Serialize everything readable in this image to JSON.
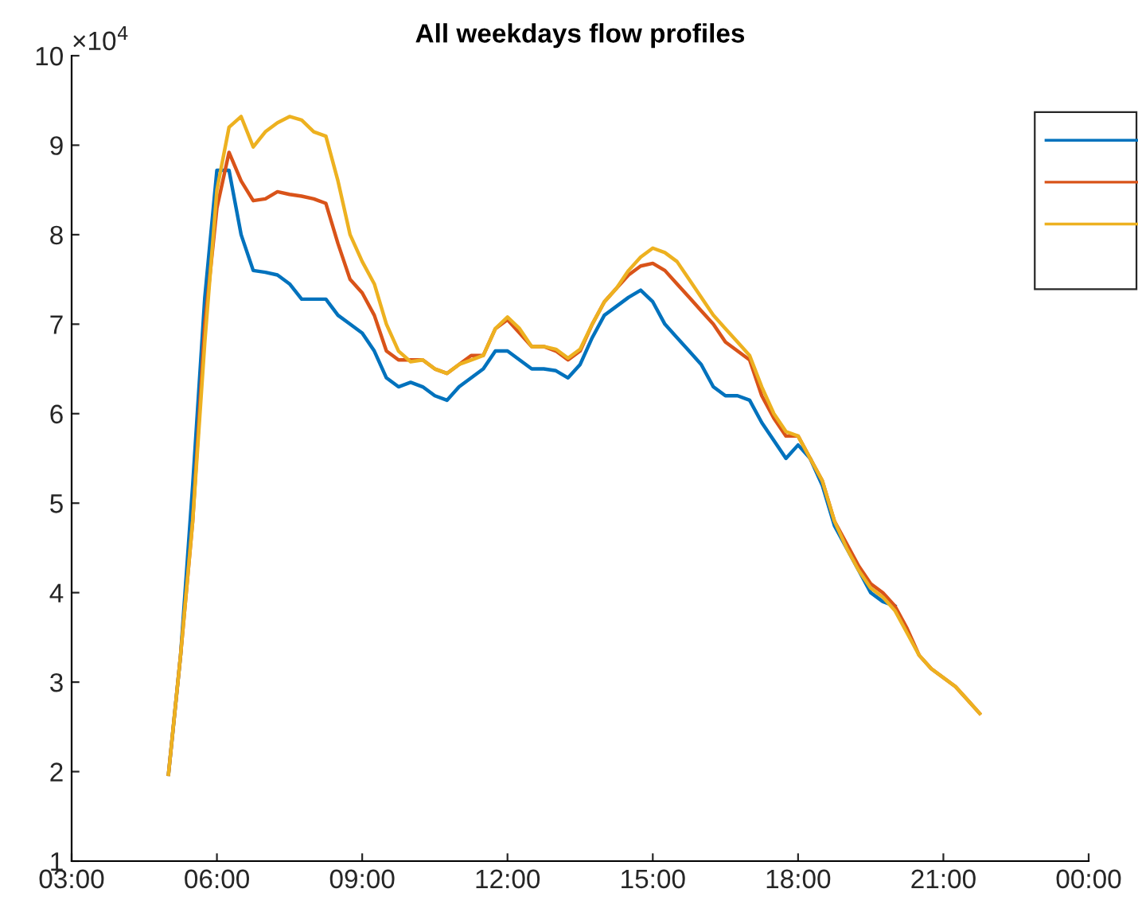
{
  "chart_data": {
    "type": "line",
    "title": "All weekdays flow profiles",
    "x": [
      5,
      5.25,
      5.5,
      5.75,
      6,
      6.25,
      6.5,
      6.75,
      7,
      7.25,
      7.5,
      7.75,
      8,
      8.25,
      8.5,
      8.75,
      9,
      9.25,
      9.5,
      9.75,
      10,
      10.25,
      10.5,
      10.75,
      11,
      11.25,
      11.5,
      11.75,
      12,
      12.25,
      12.5,
      12.75,
      13,
      13.25,
      13.5,
      13.75,
      14,
      14.25,
      14.5,
      14.75,
      15,
      15.25,
      15.5,
      15.75,
      16,
      16.25,
      16.5,
      16.75,
      17,
      17.25,
      17.5,
      17.75,
      18,
      18.25,
      18.5,
      18.75,
      19,
      19.25,
      19.5,
      19.75,
      20,
      20.25,
      20.5,
      20.75,
      21,
      21.25,
      21.5,
      21.75
    ],
    "series": [
      {
        "color": "#0072bd",
        "values": [
          1.97,
          3.3,
          5.2,
          7.3,
          8.72,
          8.72,
          8.0,
          7.6,
          7.58,
          7.55,
          7.45,
          7.28,
          7.28,
          7.28,
          7.1,
          7.0,
          6.9,
          6.7,
          6.4,
          6.3,
          6.35,
          6.3,
          6.2,
          6.15,
          6.3,
          6.4,
          6.5,
          6.7,
          6.7,
          6.6,
          6.5,
          6.5,
          6.48,
          6.4,
          6.55,
          6.85,
          7.1,
          7.2,
          7.3,
          7.38,
          7.25,
          7.0,
          6.85,
          6.7,
          6.55,
          6.3,
          6.2,
          6.2,
          6.15,
          5.9,
          5.7,
          5.5,
          5.65,
          5.5,
          5.2,
          4.75,
          4.5,
          4.25,
          4.0,
          3.9,
          3.85,
          null,
          null,
          null,
          null,
          null,
          null,
          null
        ]
      },
      {
        "color": "#d95319",
        "values": [
          1.97,
          3.3,
          4.8,
          7.0,
          8.3,
          8.92,
          8.6,
          8.38,
          8.4,
          8.48,
          8.45,
          8.43,
          8.4,
          8.35,
          7.9,
          7.5,
          7.35,
          7.1,
          6.7,
          6.6,
          6.6,
          6.6,
          6.5,
          6.45,
          6.55,
          6.65,
          6.65,
          6.95,
          7.05,
          6.9,
          6.75,
          6.75,
          6.7,
          6.6,
          6.7,
          7.0,
          7.25,
          7.4,
          7.55,
          7.65,
          7.68,
          7.6,
          7.45,
          7.3,
          7.15,
          7.0,
          6.8,
          6.7,
          6.6,
          6.2,
          5.95,
          5.75,
          5.75,
          5.5,
          5.25,
          4.8,
          4.55,
          4.3,
          4.1,
          4.0,
          3.85,
          3.6,
          3.3,
          3.15,
          3.05,
          2.95,
          2.8,
          2.65
        ]
      },
      {
        "color": "#edb120",
        "values": [
          1.97,
          3.3,
          4.8,
          6.8,
          8.5,
          9.2,
          9.32,
          8.98,
          9.15,
          9.25,
          9.32,
          9.28,
          9.15,
          9.1,
          8.6,
          8.0,
          7.7,
          7.45,
          7.0,
          6.7,
          6.58,
          6.6,
          6.5,
          6.45,
          6.55,
          6.6,
          6.65,
          6.95,
          7.08,
          6.95,
          6.75,
          6.75,
          6.72,
          6.62,
          6.72,
          7.0,
          7.25,
          7.4,
          7.6,
          7.75,
          7.85,
          7.8,
          7.7,
          7.5,
          7.3,
          7.1,
          6.95,
          6.8,
          6.65,
          6.3,
          6.0,
          5.8,
          5.75,
          5.5,
          5.25,
          4.8,
          4.5,
          4.25,
          4.05,
          3.95,
          3.8,
          3.55,
          3.3,
          3.15,
          3.05,
          2.95,
          2.8,
          2.65
        ]
      }
    ],
    "xlim": [
      3,
      24
    ],
    "xticks": [
      {
        "value": 3,
        "label": "03:00"
      },
      {
        "value": 6,
        "label": "06:00"
      },
      {
        "value": 9,
        "label": "09:00"
      },
      {
        "value": 12,
        "label": "12:00"
      },
      {
        "value": 15,
        "label": "15:00"
      },
      {
        "value": 18,
        "label": "18:00"
      },
      {
        "value": 21,
        "label": "21:00"
      },
      {
        "value": 24,
        "label": "00:00"
      }
    ],
    "ylim": [
      1,
      10
    ],
    "yticks": [
      1,
      2,
      3,
      4,
      5,
      6,
      7,
      8,
      9,
      10
    ],
    "annotations": [
      "×10$^{4}$"
    ],
    "grid": false,
    "marker": "none",
    "line_style": "solid"
  }
}
